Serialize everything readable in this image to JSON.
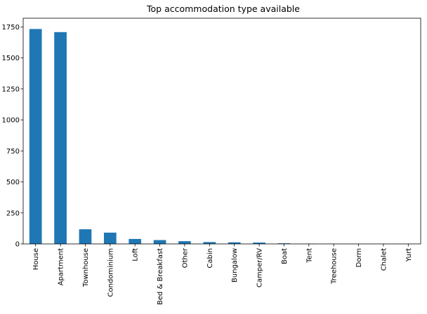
{
  "chart_data": {
    "type": "bar",
    "title": "Top accommodation type available",
    "xlabel": "",
    "ylabel": "",
    "categories": [
      "House",
      "Apartment",
      "Townhouse",
      "Condominium",
      "Loft",
      "Bed & Breakfast",
      "Other",
      "Cabin",
      "Bungalow",
      "Camper/RV",
      "Boat",
      "Tent",
      "Treehouse",
      "Dorm",
      "Chalet",
      "Yurt"
    ],
    "values": [
      1733,
      1708,
      118,
      91,
      40,
      31,
      22,
      15,
      13,
      11,
      5,
      2,
      1,
      1,
      1,
      1
    ],
    "ylim": [
      0,
      1820
    ],
    "yticks": [
      0,
      250,
      500,
      750,
      1000,
      1250,
      1500,
      1750
    ],
    "grid": false,
    "bar_color": "#1f77b4"
  }
}
